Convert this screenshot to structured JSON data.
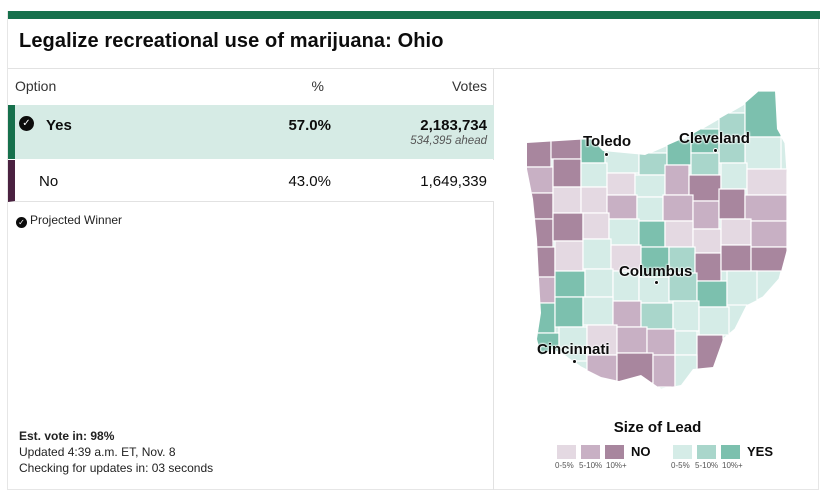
{
  "title": "Legalize recreational use of marijuana: Ohio",
  "colors": {
    "topbar": "#16704c",
    "yes_bar": "#16704c",
    "no_bar": "#4a2140",
    "yes_row_bg": "#d6ebe5",
    "yes_0_5": "#d5ece7",
    "yes_5_10": "#a9d6cb",
    "yes_10_plus": "#7cc0ae",
    "no_0_5": "#e4d9e2",
    "no_5_10": "#c8b0c4",
    "no_10_plus": "#a8869e"
  },
  "table": {
    "headers": {
      "option": "Option",
      "percent": "%",
      "votes": "Votes"
    },
    "rows": [
      {
        "option": "Yes",
        "percent": "57.0%",
        "votes": "2,183,734",
        "ahead": "534,395 ahead",
        "winner": true,
        "icon": "check-circle-icon"
      },
      {
        "option": "No",
        "percent": "43.0%",
        "votes": "1,649,339",
        "winner": false
      }
    ]
  },
  "projected": {
    "icon": "check-circle-icon",
    "label": "Projected Winner"
  },
  "footer": {
    "est_vote": "Est. vote in: 98%",
    "updated": "Updated 4:39 a.m. ET, Nov. 8",
    "checking": "Checking for updates in: 03 seconds"
  },
  "map": {
    "cities": [
      "Toledo",
      "Cleveland",
      "Columbus",
      "Cincinnati"
    ]
  },
  "legend": {
    "title": "Size of Lead",
    "no_label": "NO",
    "yes_label": "YES",
    "ranges": [
      "0-5%",
      "5-10%",
      "10%+"
    ]
  }
}
